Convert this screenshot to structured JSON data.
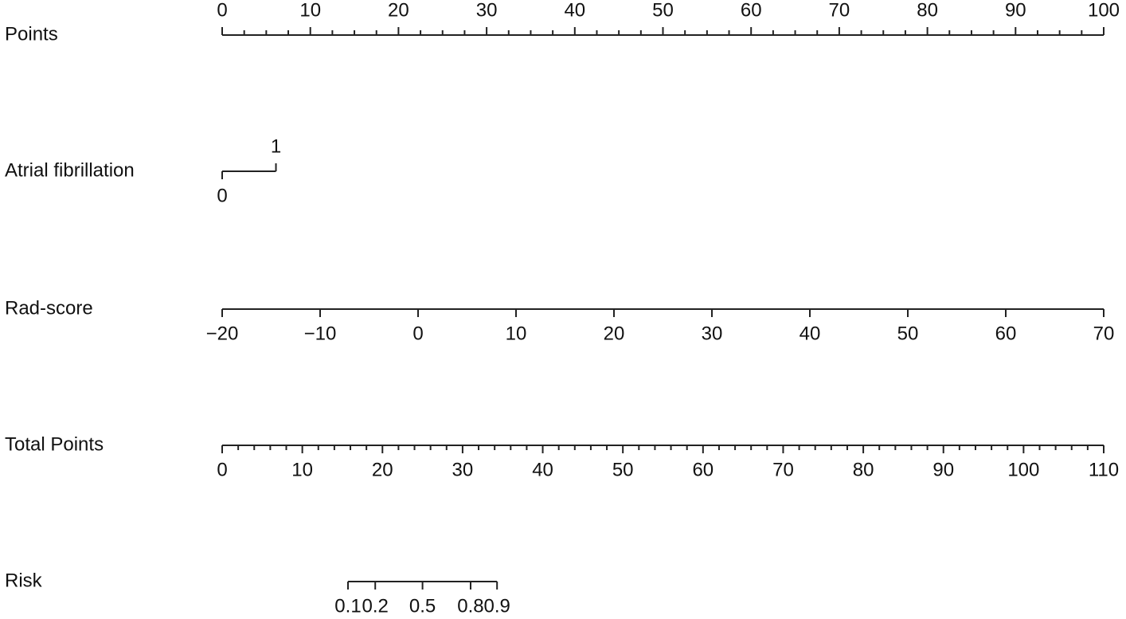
{
  "chart_data": {
    "type": "nomogram",
    "rows": [
      {
        "label": "Points",
        "xlim": [
          0,
          100
        ],
        "xticks": [
          0,
          10,
          20,
          30,
          40,
          50,
          60,
          70,
          80,
          90,
          100
        ],
        "minor_ticks": [
          2.5,
          5,
          7.5,
          12.5,
          15,
          17.5,
          22.5,
          25,
          27.5,
          32.5,
          35,
          37.5,
          42.5,
          45,
          47.5,
          52.5,
          55,
          57.5,
          62.5,
          65,
          67.5,
          72.5,
          75,
          77.5,
          82.5,
          85,
          87.5,
          92.5,
          95,
          97.5
        ],
        "tick_side": "above"
      },
      {
        "label": "Atrial fibrillation",
        "ticks": [
          0,
          1
        ],
        "points": [
          0,
          6.1
        ],
        "tick_sides": [
          "below",
          "above"
        ]
      },
      {
        "label": "Rad-score",
        "xlim": [
          -20,
          70
        ],
        "xticks": [
          {
            "value": -20,
            "label": "−20"
          },
          {
            "value": -10,
            "label": "−10"
          },
          0,
          10,
          20,
          30,
          40,
          50,
          60,
          70
        ],
        "tick_side": "below"
      },
      {
        "label": "Total Points",
        "xlim": [
          0,
          110
        ],
        "xticks": [
          0,
          10,
          20,
          30,
          40,
          50,
          60,
          70,
          80,
          90,
          100,
          110
        ],
        "minor_ticks": [
          2,
          4,
          6,
          8,
          12,
          14,
          16,
          18,
          22,
          24,
          26,
          28,
          32,
          34,
          36,
          38,
          42,
          44,
          46,
          48,
          52,
          54,
          56,
          58,
          62,
          64,
          66,
          68,
          72,
          74,
          76,
          78,
          82,
          84,
          86,
          88,
          92,
          94,
          96,
          98,
          102,
          104,
          106,
          108
        ],
        "tick_side": "below"
      },
      {
        "label": "Risk",
        "ticks": [
          0.1,
          0.2,
          0.5,
          0.8,
          0.9
        ],
        "total_points": [
          15.7,
          19.1,
          25.0,
          31.0,
          34.3
        ],
        "tick_side": "below"
      }
    ]
  }
}
